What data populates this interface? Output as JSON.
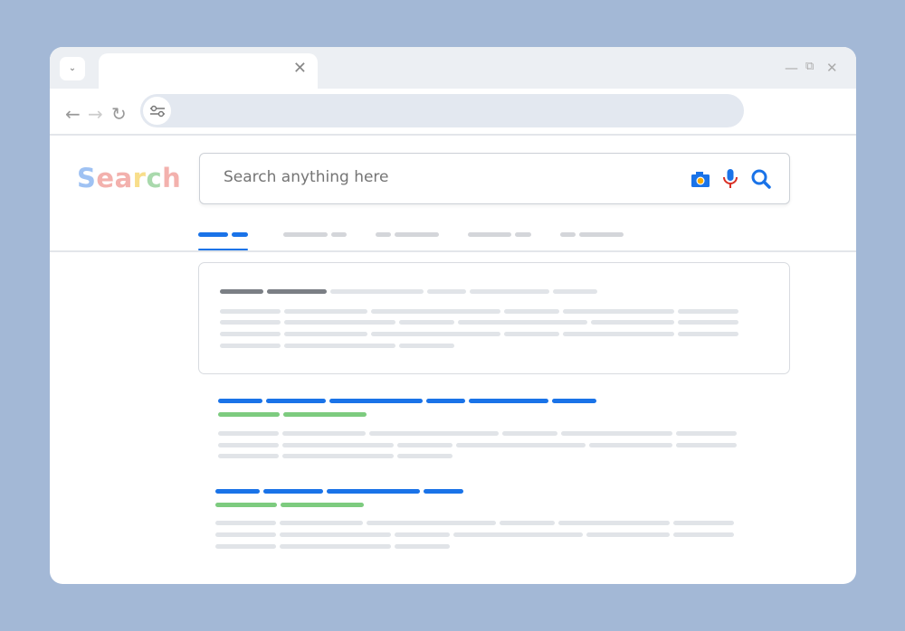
{
  "browser": {
    "tab_menu_icon": "chevron-down-icon",
    "tab_close_icon": "close-icon",
    "window_controls": [
      "minimize-icon",
      "restore-icon",
      "close-icon"
    ],
    "nav_icons": [
      "back-arrow-icon",
      "forward-arrow-icon",
      "reload-icon"
    ],
    "address_icon": "tune-settings-icon"
  },
  "page": {
    "logo": {
      "letters": [
        "S",
        "e",
        "a",
        "r",
        "c",
        "h"
      ],
      "colors": [
        "#9fc2f3",
        "#f3b1ad",
        "#f3b1ad",
        "#f8de8b",
        "#a9d9ac",
        "#f3b1ad"
      ]
    },
    "search": {
      "placeholder": "Search anything here"
    },
    "search_icons": [
      "camera-icon",
      "microphone-icon",
      "search-icon"
    ],
    "colors": {
      "accent": "#1a73e8",
      "url_green": "#7dcb7f",
      "title_dark": "#7b7f85",
      "placeholder_line": "#e1e4e8",
      "mic_red": "#d93025",
      "camera_dot": "#f9ab00"
    }
  }
}
